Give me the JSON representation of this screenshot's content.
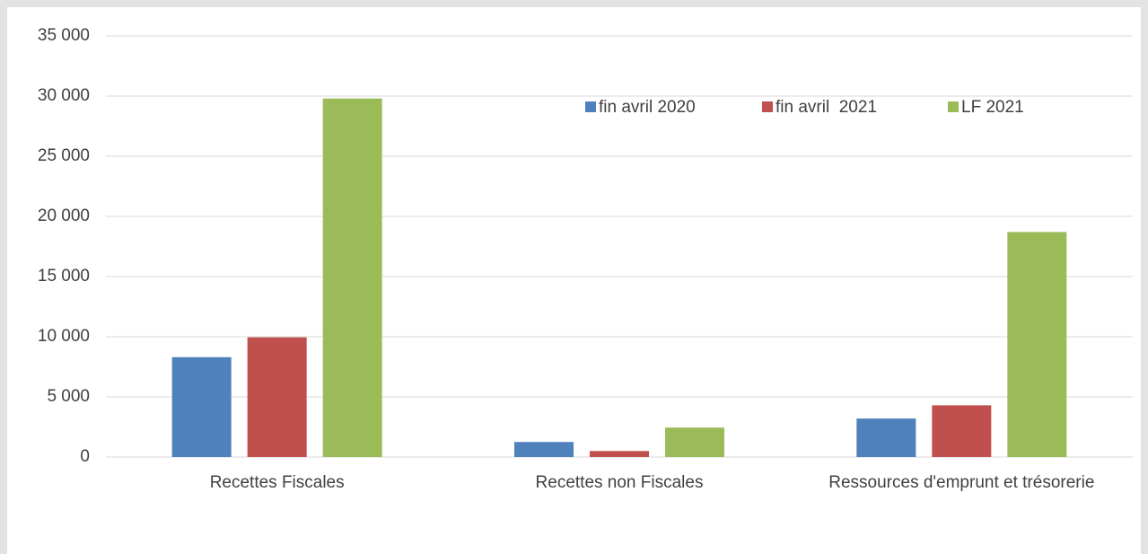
{
  "chart_data": {
    "type": "bar",
    "categories": [
      "Recettes Fiscales",
      "Recettes non Fiscales",
      "Ressources d'emprunt et trésorerie"
    ],
    "series": [
      {
        "name": "fin avril 2020",
        "color": "#4f81bd",
        "values": [
          8300,
          1250,
          3200
        ]
      },
      {
        "name": "fin avril  2021",
        "color": "#c0504d",
        "values": [
          9950,
          500,
          4300
        ]
      },
      {
        "name": "LF 2021",
        "color": "#9bbb59",
        "values": [
          29800,
          2450,
          18700
        ]
      }
    ],
    "ylim": [
      0,
      35000
    ],
    "yticks": [
      0,
      {
        "value": 5000,
        "label": "5 000"
      },
      {
        "value": 10000,
        "label": "10 000"
      },
      {
        "value": 15000,
        "label": "15 000"
      },
      {
        "value": 20000,
        "label": "20 000"
      },
      {
        "value": 25000,
        "label": "25 000"
      },
      {
        "value": 30000,
        "label": "30 000"
      },
      {
        "value": 35000,
        "label": "35 000"
      }
    ],
    "grid": true,
    "legend": "top-right"
  }
}
